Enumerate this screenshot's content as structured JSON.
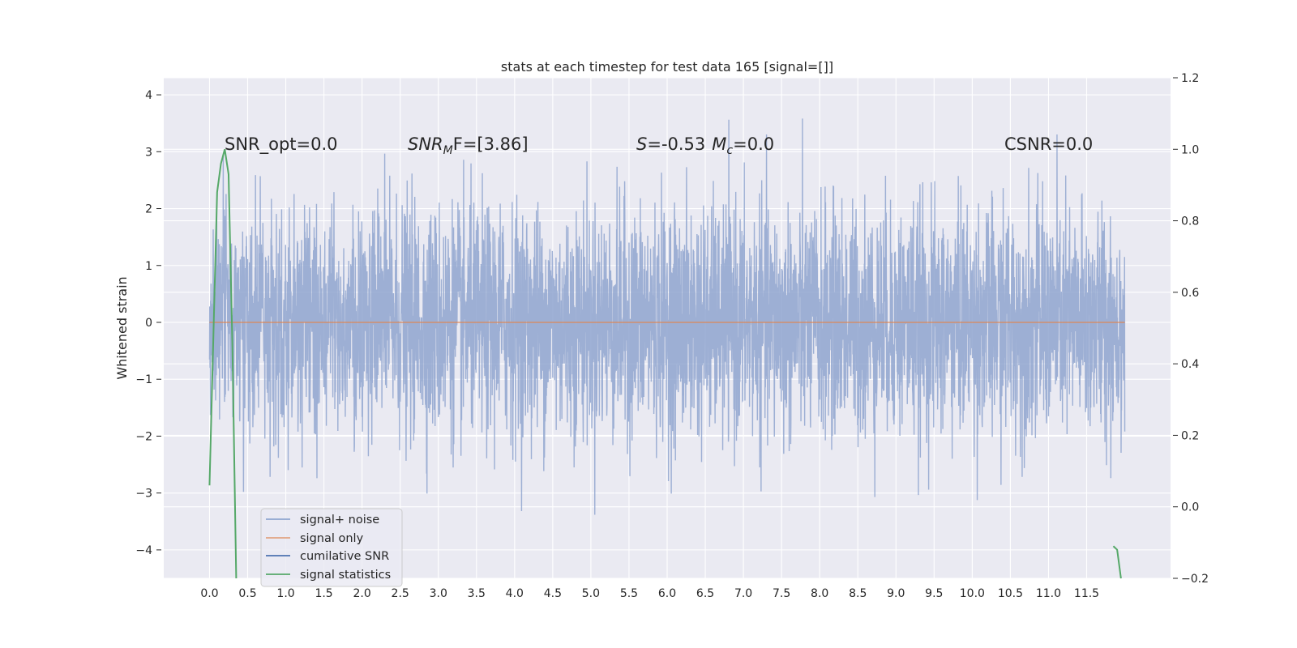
{
  "chart_data": {
    "type": "line",
    "title": "stats at each timestep for test data 165 [signal=[]]",
    "ylabel": "Whitened strain",
    "xlabel": "",
    "xlim": [
      -0.6,
      12.6
    ],
    "ylim": [
      -4.5,
      4.3
    ],
    "y2lim": [
      -0.2,
      1.2
    ],
    "grid": true,
    "x_ticks": [
      0.0,
      0.5,
      1.0,
      1.5,
      2.0,
      2.5,
      3.0,
      3.5,
      4.0,
      4.5,
      5.0,
      5.5,
      6.0,
      6.5,
      7.0,
      7.5,
      8.0,
      8.5,
      9.0,
      9.5,
      10.0,
      10.5,
      11.0,
      11.5
    ],
    "x_tick_labels": [
      "0.0",
      "0.5",
      "1.0",
      "1.5",
      "2.0",
      "2.5",
      "3.0",
      "3.5",
      "4.0",
      "4.5",
      "5.0",
      "5.5",
      "6.0",
      "6.5",
      "7.0",
      "7.5",
      "8.0",
      "8.5",
      "9.0",
      "9.5",
      "10.0",
      "10.5",
      "11.0",
      "11.5"
    ],
    "y_ticks": [
      4,
      3,
      2,
      1,
      0,
      -1,
      -2,
      -3,
      -4
    ],
    "y_tick_labels": [
      "4",
      "3",
      "2",
      "1",
      "0",
      "−1",
      "−2",
      "−3",
      "−4"
    ],
    "y2_ticks": [
      1.2,
      1.0,
      0.8,
      0.6,
      0.4,
      0.2,
      0.0,
      -0.2
    ],
    "y2_tick_labels": [
      "1.2",
      "1.0",
      "0.8",
      "0.6",
      "0.4",
      "0.2",
      "0.0",
      "−0.2"
    ],
    "annotations": {
      "snr_opt": "SNR_opt=0.0",
      "snr_mf_prefix": "SNR",
      "snr_mf_sub": "M",
      "snr_mf_suffix": "F=[3.86]",
      "s_label": "S",
      "s_value": "=-0.53",
      "mc_label": "M",
      "mc_sub": "c",
      "mc_value": "=0.0",
      "csnr": "CSNR=0.0"
    },
    "legend": {
      "position": "lower-left",
      "entries": [
        "signal+ noise",
        "signal only",
        "cumilative SNR",
        "signal statistics"
      ]
    },
    "series": [
      {
        "name": "signal+ noise",
        "color": "#8fa5cf",
        "kind": "noise",
        "x_range": [
          0.0,
          12.0
        ],
        "approx_peak_max": 3.95,
        "approx_peak_min": -4.1
      },
      {
        "name": "signal only",
        "color": "#dd8452",
        "x": [
          0.0,
          12.0
        ],
        "y": [
          0.0,
          0.0
        ]
      },
      {
        "name": "signal statistics",
        "color": "#55a868",
        "axis": "right",
        "x": [
          0.0,
          0.1,
          0.15,
          0.2,
          0.25,
          0.3,
          0.35,
          11.85,
          11.9,
          11.95
        ],
        "y": [
          0.06,
          0.88,
          0.96,
          1.0,
          0.93,
          0.45,
          -0.2,
          -0.11,
          -0.12,
          -0.2
        ]
      }
    ]
  }
}
